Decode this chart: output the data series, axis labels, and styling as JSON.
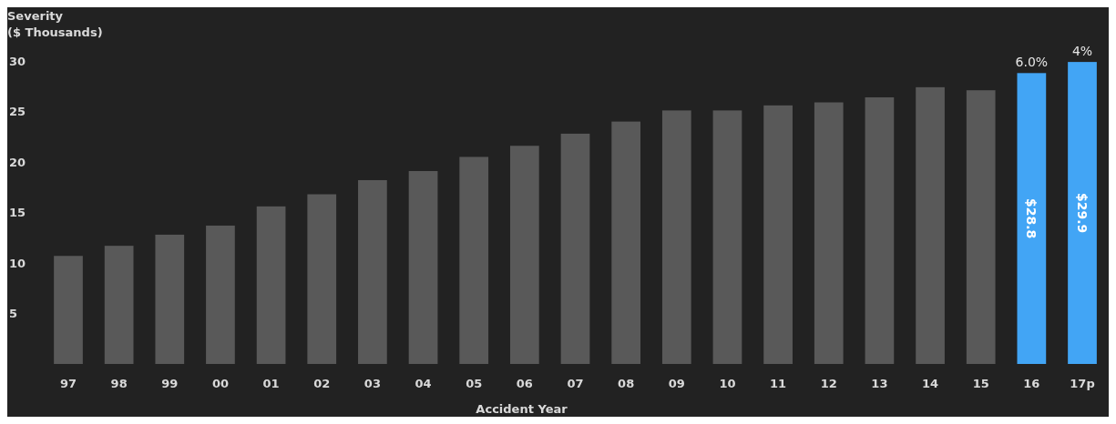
{
  "chart_data": {
    "type": "bar",
    "ylabel": "Severity\n($ Thousands)",
    "xlabel": "Accident Year",
    "categories": [
      "97",
      "98",
      "99",
      "00",
      "01",
      "02",
      "03",
      "04",
      "05",
      "06",
      "07",
      "08",
      "09",
      "10",
      "11",
      "12",
      "13",
      "14",
      "15",
      "16",
      "17p"
    ],
    "values": [
      10.7,
      11.7,
      12.8,
      13.7,
      15.6,
      16.8,
      18.2,
      19.1,
      20.5,
      21.6,
      22.8,
      24.0,
      25.1,
      25.1,
      25.6,
      25.9,
      26.4,
      27.4,
      27.1,
      28.8,
      29.9
    ],
    "colors": [
      "#595959",
      "#595959",
      "#595959",
      "#595959",
      "#595959",
      "#595959",
      "#595959",
      "#595959",
      "#595959",
      "#595959",
      "#595959",
      "#595959",
      "#595959",
      "#595959",
      "#595959",
      "#595959",
      "#595959",
      "#595959",
      "#595959",
      "#42a5f5",
      "#42a5f5"
    ],
    "value_labels": [
      null,
      null,
      null,
      null,
      null,
      null,
      null,
      null,
      null,
      null,
      null,
      null,
      null,
      null,
      null,
      null,
      null,
      null,
      null,
      "$28.8",
      "$29.9"
    ],
    "annotations": [
      {
        "text": "6.0%",
        "x": "16",
        "y": 28.8
      },
      {
        "text": "4%",
        "x": "17p",
        "y": 29.9
      }
    ],
    "ylim": [
      0,
      30
    ],
    "yticks": [
      5,
      10,
      15,
      20,
      25,
      30
    ],
    "grid": false
  }
}
